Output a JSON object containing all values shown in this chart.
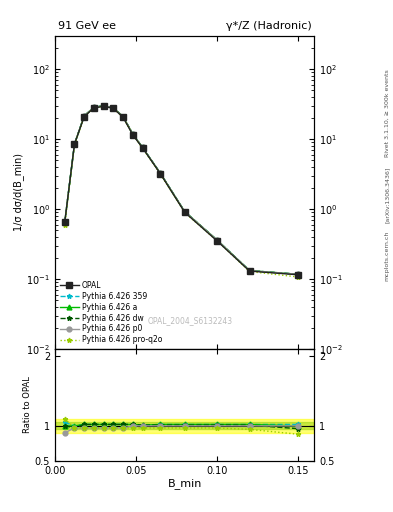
{
  "title_left": "91 GeV ee",
  "title_right": "γ*/Z (Hadronic)",
  "ylabel_main": "1/σ dσ/d(B_min)",
  "ylabel_ratio": "Ratio to OPAL",
  "xlabel": "B_min",
  "watermark": "OPAL_2004_S6132243",
  "right_label_top": "Rivet 3.1.10, ≥ 300k events",
  "right_label_mid": "[arXiv:1306.3436]",
  "right_label_bot": "mcplots.cern.ch",
  "x_data": [
    0.006,
    0.012,
    0.018,
    0.024,
    0.03,
    0.036,
    0.042,
    0.048,
    0.054,
    0.065,
    0.08,
    0.1,
    0.12,
    0.15
  ],
  "opal_y": [
    0.65,
    8.5,
    21.0,
    28.0,
    29.5,
    27.5,
    20.5,
    11.5,
    7.5,
    3.2,
    0.9,
    0.35,
    0.13,
    0.115
  ],
  "py359_y": [
    0.65,
    8.5,
    21.5,
    28.5,
    30.0,
    28.0,
    21.0,
    11.8,
    7.6,
    3.25,
    0.92,
    0.36,
    0.132,
    0.117
  ],
  "pya_y": [
    0.65,
    8.5,
    21.5,
    28.5,
    30.0,
    28.0,
    21.0,
    11.8,
    7.6,
    3.25,
    0.92,
    0.36,
    0.132,
    0.117
  ],
  "pydw_y": [
    0.65,
    8.5,
    21.5,
    28.5,
    30.0,
    28.0,
    21.0,
    11.8,
    7.6,
    3.25,
    0.92,
    0.36,
    0.132,
    0.117
  ],
  "pyp0_y": [
    0.65,
    8.5,
    21.5,
    28.5,
    30.0,
    28.0,
    21.0,
    11.8,
    7.6,
    3.25,
    0.92,
    0.36,
    0.132,
    0.117
  ],
  "pyproq2o_y": [
    0.6,
    8.2,
    21.0,
    28.0,
    29.5,
    27.5,
    20.5,
    11.5,
    7.4,
    3.15,
    0.89,
    0.35,
    0.128,
    0.107
  ],
  "py359_ratio": [
    1.05,
    1.0,
    1.02,
    1.02,
    1.02,
    1.02,
    1.02,
    1.02,
    1.01,
    1.02,
    1.02,
    1.02,
    1.02,
    1.02
  ],
  "pya_ratio": [
    1.0,
    1.0,
    1.02,
    1.02,
    1.02,
    1.02,
    1.02,
    1.02,
    1.01,
    1.02,
    1.02,
    1.02,
    1.02,
    1.0
  ],
  "pydw_ratio": [
    1.0,
    0.97,
    1.02,
    1.02,
    1.02,
    1.02,
    1.02,
    1.02,
    1.01,
    1.01,
    1.01,
    1.01,
    1.01,
    0.96
  ],
  "pyp0_ratio": [
    0.9,
    0.97,
    0.97,
    0.97,
    0.97,
    0.97,
    0.97,
    1.0,
    1.0,
    1.0,
    1.0,
    1.0,
    1.0,
    1.0
  ],
  "pyproq2o_ratio": [
    1.1,
    0.97,
    0.97,
    0.97,
    0.97,
    0.97,
    0.97,
    0.97,
    0.97,
    0.97,
    0.97,
    0.97,
    0.95,
    0.88
  ],
  "opal_color": "#222222",
  "py359_color": "#00bbcc",
  "pya_color": "#00bb00",
  "pydw_color": "#005500",
  "pyp0_color": "#999999",
  "pyproq2o_color": "#99cc00",
  "band_yellow": [
    0.9,
    1.1
  ],
  "band_green": [
    0.95,
    1.05
  ],
  "xlim": [
    0.0,
    0.16
  ],
  "ylim_main": [
    0.01,
    300
  ],
  "ylim_ratio": [
    0.5,
    2.1
  ]
}
